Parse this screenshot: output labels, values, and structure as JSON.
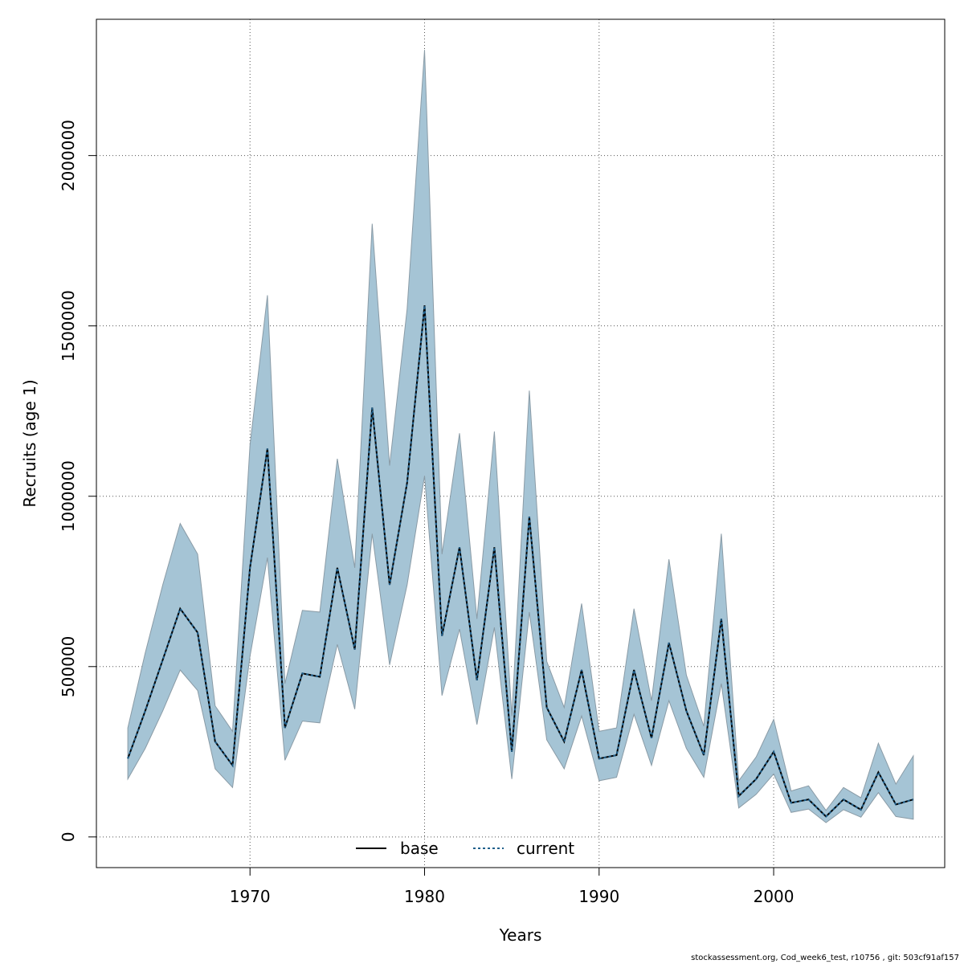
{
  "chart_data": {
    "type": "area",
    "xlabel": "Years",
    "ylabel": "Recruits (age 1)",
    "xlim": [
      1961.2,
      2009.8
    ],
    "ylim": [
      -90000,
      2400000
    ],
    "x_ticks": [
      1970,
      1980,
      1990,
      2000
    ],
    "x_tick_labels": [
      "1970",
      "1980",
      "1990",
      "2000"
    ],
    "y_ticks": [
      0,
      500000,
      1000000,
      1500000,
      2000000
    ],
    "y_tick_labels": [
      "0",
      "500000",
      "1000000",
      "1500000",
      "2000000"
    ],
    "grid": true,
    "legend": {
      "placement": "bottom-center",
      "entries": [
        "base",
        "current"
      ]
    },
    "colors": {
      "band": "#a5c4d5",
      "band_edge": "#8a9ba6",
      "base": "#000000",
      "current": "#1f5f8b",
      "grid": "#555555"
    },
    "x": [
      1963,
      1964,
      1965,
      1966,
      1967,
      1968,
      1969,
      1970,
      1971,
      1972,
      1973,
      1974,
      1975,
      1976,
      1977,
      1978,
      1979,
      1980,
      1981,
      1982,
      1983,
      1984,
      1985,
      1986,
      1987,
      1988,
      1989,
      1990,
      1991,
      1992,
      1993,
      1994,
      1995,
      1996,
      1997,
      1998,
      1999,
      2000,
      2001,
      2002,
      2003,
      2004,
      2005,
      2006,
      2007,
      2008
    ],
    "series": [
      {
        "name": "base",
        "values": [
          230000,
          370000,
          520000,
          670000,
          600000,
          280000,
          210000,
          790000,
          1140000,
          320000,
          480000,
          470000,
          790000,
          550000,
          1260000,
          740000,
          1040000,
          1560000,
          590000,
          850000,
          460000,
          850000,
          250000,
          940000,
          380000,
          280000,
          490000,
          230000,
          240000,
          490000,
          290000,
          570000,
          370000,
          240000,
          640000,
          120000,
          170000,
          250000,
          100000,
          110000,
          60000,
          110000,
          80000,
          190000,
          95000,
          110000
        ]
      },
      {
        "name": "current",
        "values": [
          230000,
          370000,
          520000,
          670000,
          600000,
          280000,
          210000,
          790000,
          1140000,
          320000,
          480000,
          470000,
          790000,
          550000,
          1260000,
          740000,
          1040000,
          1560000,
          590000,
          850000,
          460000,
          850000,
          250000,
          940000,
          380000,
          280000,
          490000,
          230000,
          240000,
          490000,
          290000,
          570000,
          370000,
          240000,
          640000,
          120000,
          170000,
          250000,
          100000,
          110000,
          60000,
          110000,
          80000,
          190000,
          95000,
          110000
        ]
      }
    ],
    "band": {
      "lower": [
        170000,
        260000,
        370000,
        490000,
        430000,
        200000,
        145000,
        530000,
        820000,
        225000,
        340000,
        335000,
        565000,
        375000,
        890000,
        505000,
        740000,
        1060000,
        415000,
        610000,
        330000,
        615000,
        170000,
        660000,
        285000,
        200000,
        355000,
        165000,
        175000,
        360000,
        210000,
        400000,
        260000,
        175000,
        450000,
        85000,
        125000,
        185000,
        72000,
        82000,
        42000,
        80000,
        58000,
        130000,
        60000,
        52000
      ],
      "upper": [
        320000,
        540000,
        740000,
        920000,
        830000,
        385000,
        310000,
        1150000,
        1590000,
        450000,
        665000,
        660000,
        1110000,
        790000,
        1800000,
        1090000,
        1550000,
        2310000,
        830000,
        1185000,
        640000,
        1190000,
        355000,
        1310000,
        515000,
        380000,
        685000,
        310000,
        320000,
        670000,
        400000,
        815000,
        475000,
        325000,
        890000,
        165000,
        235000,
        345000,
        135000,
        150000,
        78000,
        145000,
        115000,
        275000,
        155000,
        238000
      ]
    }
  },
  "footer": {
    "text": "stockassessment.org, Cod_week6_test, r10756 , git: 503cf91af157"
  }
}
